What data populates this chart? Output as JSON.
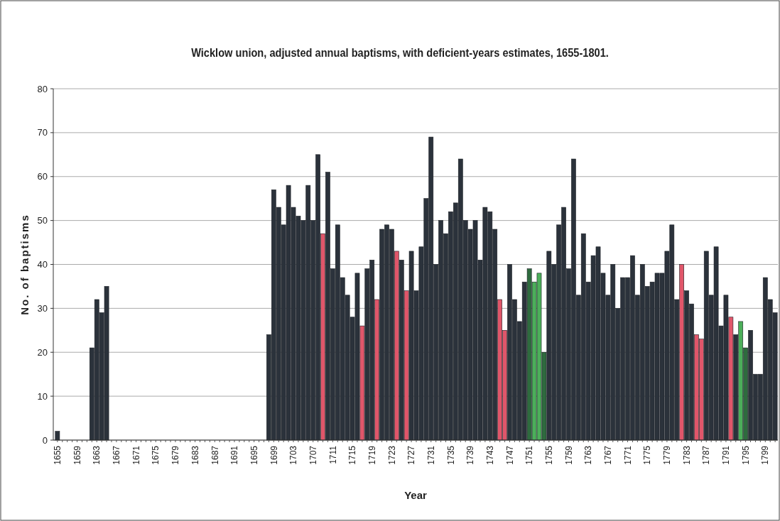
{
  "chart_data": {
    "type": "bar",
    "title": "Wicklow union, adjusted annual baptisms, with deficient-years estimates, 1655-1801.",
    "xlabel": "Year",
    "ylabel": "No. of baptisms",
    "categories": [
      "1655",
      null,
      null,
      null,
      "1659",
      null,
      null,
      null,
      "1663",
      null,
      null,
      null,
      "1667",
      null,
      null,
      null,
      "1671",
      null,
      null,
      null,
      "1675",
      null,
      null,
      null,
      "1679",
      null,
      null,
      null,
      "1683",
      null,
      null,
      null,
      "1687",
      null,
      null,
      null,
      "1691",
      null,
      null,
      null,
      "1695",
      null,
      null,
      null,
      "1699",
      null,
      null,
      null,
      "1703",
      null,
      null,
      null,
      "1707",
      null,
      null,
      null,
      "1711",
      null,
      null,
      null,
      "1715",
      null,
      null,
      null,
      "1719",
      null,
      null,
      null,
      "1723",
      null,
      null,
      null,
      "1727",
      null,
      null,
      null,
      "1731",
      null,
      null,
      null,
      "1735",
      null,
      null,
      null,
      "1739",
      null,
      null,
      null,
      "1743",
      null,
      null,
      null,
      "1747",
      null,
      null,
      null,
      "1751",
      null,
      null,
      null,
      "1755",
      null,
      null,
      null,
      "1759",
      null,
      null,
      null,
      "1763",
      null,
      null,
      null,
      "1767",
      null,
      null,
      null,
      "1771",
      null,
      null,
      null,
      "1775",
      null,
      null,
      null,
      "1779",
      null,
      null,
      null,
      "1783",
      null,
      null,
      null,
      "1787",
      null,
      null,
      null,
      "1791",
      null,
      null,
      null,
      "1795",
      null,
      null,
      null,
      "1799",
      null,
      null
    ],
    "values": [
      2,
      0,
      0,
      0,
      0,
      0,
      0,
      21,
      32,
      29,
      35,
      0,
      0,
      0,
      0,
      0,
      0,
      0,
      0,
      0,
      0,
      0,
      0,
      0,
      0,
      0,
      0,
      0,
      0,
      0,
      0,
      0,
      0,
      0,
      0,
      0,
      0,
      0,
      0,
      0,
      0,
      0,
      0,
      24,
      57,
      53,
      49,
      58,
      53,
      51,
      50,
      58,
      50,
      65,
      47,
      61,
      39,
      49,
      37,
      33,
      28,
      38,
      26,
      39,
      41,
      32,
      48,
      49,
      48,
      43,
      41,
      34,
      43,
      34,
      44,
      55,
      69,
      40,
      50,
      47,
      52,
      54,
      64,
      50,
      48,
      50,
      41,
      53,
      52,
      48,
      32,
      25,
      40,
      32,
      27,
      36,
      39,
      36,
      38,
      20,
      43,
      40,
      49,
      53,
      39,
      64,
      33,
      47,
      36,
      42,
      44,
      38,
      33,
      40,
      30,
      37,
      37,
      42,
      33,
      40,
      35,
      36,
      38,
      38,
      43,
      49,
      32,
      40,
      34,
      31,
      24,
      23,
      43,
      33,
      44,
      26,
      33,
      28,
      24,
      27,
      21,
      25,
      15,
      15,
      37,
      32,
      29
    ],
    "colors": [
      "#2b323b",
      "#2b323b",
      "#2b323b",
      "#2b323b",
      "#2b323b",
      "#2b323b",
      "#2b323b",
      "#2b323b",
      "#2b323b",
      "#2b323b",
      "#2b323b",
      "#2b323b",
      "#2b323b",
      "#2b323b",
      "#2b323b",
      "#2b323b",
      "#2b323b",
      "#2b323b",
      "#2b323b",
      "#2b323b",
      "#2b323b",
      "#2b323b",
      "#2b323b",
      "#2b323b",
      "#2b323b",
      "#2b323b",
      "#2b323b",
      "#2b323b",
      "#2b323b",
      "#2b323b",
      "#2b323b",
      "#2b323b",
      "#2b323b",
      "#2b323b",
      "#2b323b",
      "#2b323b",
      "#2b323b",
      "#2b323b",
      "#2b323b",
      "#2b323b",
      "#2b323b",
      "#2b323b",
      "#2b323b",
      "#2b323b",
      "#2b323b",
      "#2b323b",
      "#2b323b",
      "#2b323b",
      "#2b323b",
      "#2b323b",
      "#2b323b",
      "#2b323b",
      "#2b323b",
      "#2b323b",
      "#e0566a",
      "#2b323b",
      "#2b323b",
      "#2b323b",
      "#2b323b",
      "#2b323b",
      "#2b323b",
      "#2b323b",
      "#e0566a",
      "#2b323b",
      "#2b323b",
      "#e0566a",
      "#2b323b",
      "#2b323b",
      "#2b323b",
      "#e0566a",
      "#2b323b",
      "#e0566a",
      "#2b323b",
      "#2b323b",
      "#2b323b",
      "#2b323b",
      "#2b323b",
      "#2b323b",
      "#2b323b",
      "#2b323b",
      "#2b323b",
      "#2b323b",
      "#2b323b",
      "#2b323b",
      "#2b323b",
      "#2b323b",
      "#2b323b",
      "#2b323b",
      "#2b323b",
      "#2b323b",
      "#e0566a",
      "#e0566a",
      "#2b323b",
      "#2b323b",
      "#2b323b",
      "#2b323b",
      "#2e6b3e",
      "#4caf5a",
      "#4caf5a",
      "#2e6b3e",
      "#2b323b",
      "#2b323b",
      "#2b323b",
      "#2b323b",
      "#2b323b",
      "#2b323b",
      "#2b323b",
      "#2b323b",
      "#2b323b",
      "#2b323b",
      "#2b323b",
      "#2b323b",
      "#2b323b",
      "#2b323b",
      "#2b323b",
      "#2b323b",
      "#2b323b",
      "#2b323b",
      "#2b323b",
      "#2b323b",
      "#2b323b",
      "#2b323b",
      "#2b323b",
      "#2b323b",
      "#2b323b",
      "#2b323b",
      "#2b323b",
      "#e0566a",
      "#2b323b",
      "#2b323b",
      "#e0566a",
      "#e0566a",
      "#2b323b",
      "#2b323b",
      "#2b323b",
      "#2b323b",
      "#2b323b",
      "#e0566a",
      "#2b323b",
      "#4caf5a",
      "#2e6b3e",
      "#2b323b",
      "#2b323b",
      "#2b323b",
      "#2b323b",
      "#2b323b",
      "#2b323b"
    ],
    "ylim": [
      0,
      80
    ],
    "yticks": [
      0,
      10,
      20,
      30,
      40,
      50,
      60,
      70,
      80
    ],
    "grid": "y"
  }
}
